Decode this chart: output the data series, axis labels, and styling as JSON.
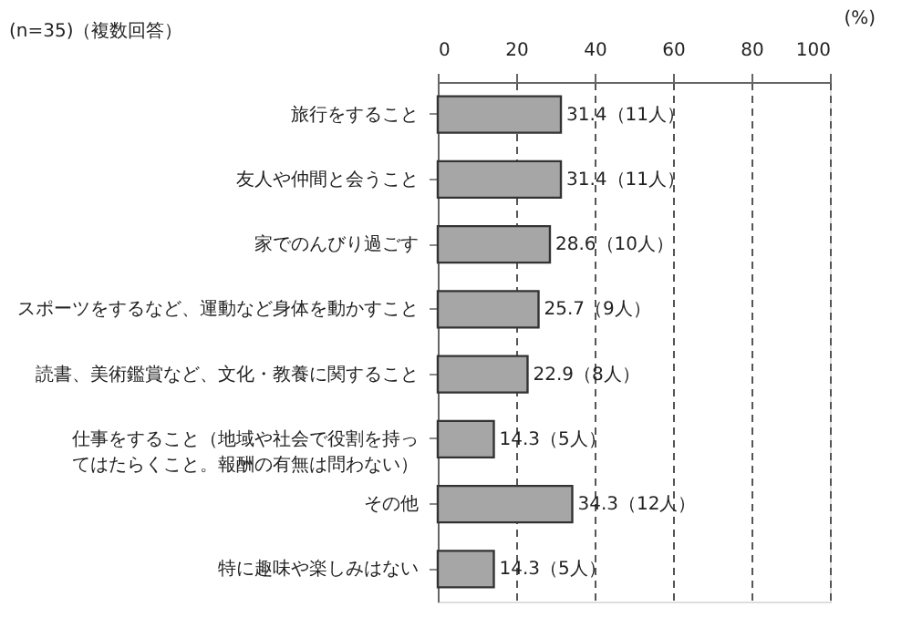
{
  "chart_data": {
    "type": "bar",
    "orientation": "horizontal",
    "categories": [
      "旅行をすること",
      "友人や仲間と会うこと",
      "家でのんびり過ごす",
      "スポーツをするなど、運動など身体を動かすこと",
      "読書、美術鑑賞など、文化・教養に関すること",
      "仕事をすること（地域や社会で役割を持ってはたらくこと。報酬の有無は問わない）",
      "その他",
      "特に趣味や楽しみはない"
    ],
    "values": [
      31.4,
      31.4,
      28.6,
      25.7,
      22.9,
      14.3,
      34.3,
      14.3
    ],
    "value_labels": [
      "31.4（11人）",
      "31.4（11人）",
      "28.6（10人）",
      "25.7（9人）",
      "22.9（8人）",
      "14.3（5人）",
      "34.3（12人）",
      "14.3（5人）"
    ],
    "color": "#a6a6a6",
    "xlim": [
      0,
      100
    ],
    "xticks": [
      0,
      20,
      40,
      60,
      80,
      100
    ],
    "grid": "x",
    "line_style": "dashed",
    "annotations": [
      "(n=35)（複数回答）",
      "(%)"
    ]
  }
}
